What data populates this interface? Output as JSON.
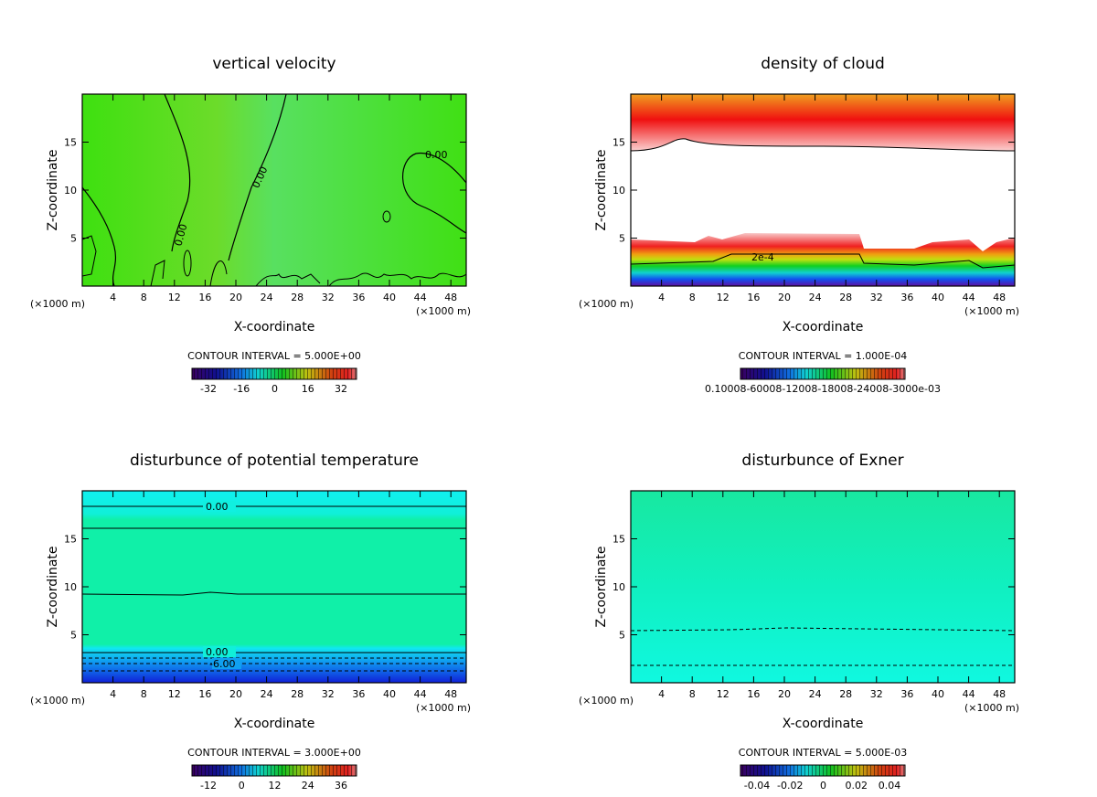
{
  "chart_data": [
    {
      "type": "heatmap",
      "title": "vertical velocity",
      "xlabel": "X-coordinate",
      "ylabel": "Z-coordinate",
      "x_unit": "(×1000 m)",
      "y_unit": "(×1000 m)",
      "xlim": [
        0,
        50
      ],
      "ylim": [
        0,
        20
      ],
      "xticks": [
        "4",
        "8",
        "12",
        "16",
        "20",
        "24",
        "28",
        "32",
        "36",
        "40",
        "44",
        "48"
      ],
      "yticks": [
        "5",
        "10",
        "15"
      ],
      "contour_labels": [
        "0.00",
        "0.00",
        "0.00"
      ],
      "contour_interval": "CONTOUR INTERVAL = 5.000E+00",
      "colorbar_ticks": [
        "-32",
        "-16",
        "0",
        "16",
        "32"
      ]
    },
    {
      "type": "heatmap",
      "title": "density of cloud",
      "xlabel": "X-coordinate",
      "ylabel": "Z-coordinate",
      "x_unit": "(×1000 m)",
      "y_unit": "(×1000 m)",
      "xlim": [
        0,
        50
      ],
      "ylim": [
        0,
        20
      ],
      "xticks": [
        "4",
        "8",
        "12",
        "16",
        "20",
        "24",
        "28",
        "32",
        "36",
        "40",
        "44",
        "48"
      ],
      "yticks": [
        "5",
        "10",
        "15"
      ],
      "contour_labels": [
        "2e-4"
      ],
      "contour_interval": "CONTOUR INTERVAL = 1.000E-04",
      "colorbar_ticks": [
        "0.1000E-03",
        "0.6000E-03",
        "0.1200E-02",
        "0.1800E-02",
        "0.2400E-02",
        "0.3000E-02"
      ],
      "colorbar_tick_text": "0.10008-60008-12008-18008-24008-3000e-03"
    },
    {
      "type": "heatmap",
      "title": "disturbunce of potential temperature",
      "xlabel": "X-coordinate",
      "ylabel": "Z-coordinate",
      "x_unit": "(×1000 m)",
      "y_unit": "(×1000 m)",
      "xlim": [
        0,
        50
      ],
      "ylim": [
        0,
        20
      ],
      "xticks": [
        "4",
        "8",
        "12",
        "16",
        "20",
        "24",
        "28",
        "32",
        "36",
        "40",
        "44",
        "48"
      ],
      "yticks": [
        "5",
        "10",
        "15"
      ],
      "contour_labels": [
        "0.00",
        "0.00",
        "-6.00"
      ],
      "contour_interval": "CONTOUR INTERVAL = 3.000E+00",
      "colorbar_ticks": [
        "-12",
        "0",
        "12",
        "24",
        "36"
      ]
    },
    {
      "type": "heatmap",
      "title": "disturbunce of Exner",
      "xlabel": "X-coordinate",
      "ylabel": "Z-coordinate",
      "x_unit": "(×1000 m)",
      "y_unit": "(×1000 m)",
      "xlim": [
        0,
        50
      ],
      "ylim": [
        0,
        20
      ],
      "xticks": [
        "4",
        "8",
        "12",
        "16",
        "20",
        "24",
        "28",
        "32",
        "36",
        "40",
        "44",
        "48"
      ],
      "yticks": [
        "5",
        "10",
        "15"
      ],
      "contour_labels": [],
      "contour_interval": "CONTOUR INTERVAL = 5.000E-03",
      "colorbar_ticks": [
        "-0.04",
        "-0.02",
        "0",
        "0.02",
        "0.04"
      ]
    }
  ]
}
